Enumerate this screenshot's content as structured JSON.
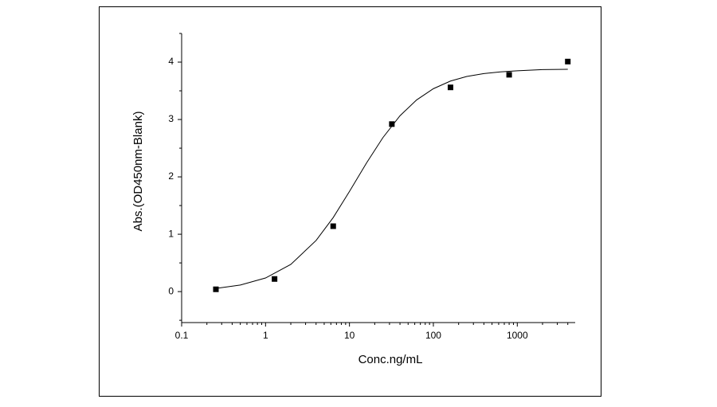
{
  "chart_data": {
    "type": "scatter",
    "x_label": "Conc.ng/mL",
    "y_label": "Abs.(OD450nm-Blank)",
    "xscale": "log",
    "xlim": [
      0.1,
      4900
    ],
    "ylim": [
      -0.54,
      4.5
    ],
    "xticks": [
      0.1,
      1,
      10,
      100,
      1000
    ],
    "xminorticks": [
      0.2,
      0.3,
      0.4,
      0.5,
      0.6,
      0.7,
      0.8,
      0.9,
      2,
      3,
      4,
      5,
      6,
      7,
      8,
      9,
      20,
      30,
      40,
      50,
      60,
      70,
      80,
      90,
      200,
      300,
      400,
      500,
      600,
      700,
      800,
      900,
      2000,
      3000,
      4000
    ],
    "yticks": [
      0,
      1,
      2,
      3,
      4
    ],
    "yminorticks": [
      -0.5,
      0.5,
      1.5,
      2.5,
      3.5,
      4.5
    ],
    "series": [
      {
        "type": "scatter",
        "color": "#000000",
        "x": [
          0.256,
          1.28,
          6.4,
          32,
          160,
          800,
          4000
        ],
        "values": [
          0.04,
          0.22,
          1.14,
          2.92,
          3.56,
          3.78,
          4.01
        ]
      },
      {
        "type": "line",
        "color": "#000000",
        "x": [
          0.256,
          0.5,
          1,
          2,
          4,
          6.4,
          10,
          16,
          25,
          40,
          63,
          100,
          160,
          250,
          400,
          630,
          1000,
          2000,
          4000
        ],
        "values": [
          0.056,
          0.114,
          0.237,
          0.474,
          0.891,
          1.29,
          1.746,
          2.244,
          2.683,
          3.065,
          3.34,
          3.537,
          3.67,
          3.75,
          3.8,
          3.83,
          3.85,
          3.87,
          3.876
        ]
      }
    ]
  }
}
